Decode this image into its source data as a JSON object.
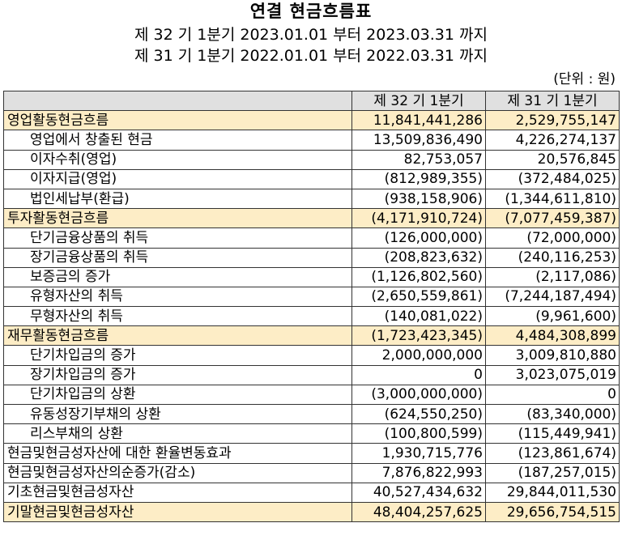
{
  "title": "연결 현금흐름표",
  "period_current": "제 32 기 1분기 2023.01.01 부터 2023.03.31 까지",
  "period_prior": "제 31 기 1분기 2022.01.01 부터 2022.03.31 까지",
  "unit": "(단위 : 원)",
  "columns": [
    "",
    "제 32 기 1분기",
    "제 31 기 1분기"
  ],
  "rows": [
    {
      "label": "영업활동현금흐름",
      "cur": "11,841,441,286",
      "prev": "2,529,755,147",
      "highlight": true,
      "indent": false
    },
    {
      "label": "영업에서 창출된 현금",
      "cur": "13,509,836,490",
      "prev": "4,226,274,137",
      "highlight": false,
      "indent": true
    },
    {
      "label": "이자수취(영업)",
      "cur": "82,753,057",
      "prev": "20,576,845",
      "highlight": false,
      "indent": true
    },
    {
      "label": "이자지급(영업)",
      "cur": "(812,989,355)",
      "prev": "(372,484,025)",
      "highlight": false,
      "indent": true
    },
    {
      "label": "법인세납부(환급)",
      "cur": "(938,158,906)",
      "prev": "(1,344,611,810)",
      "highlight": false,
      "indent": true
    },
    {
      "label": "투자활동현금흐름",
      "cur": "(4,171,910,724)",
      "prev": "(7,077,459,387)",
      "highlight": true,
      "indent": false
    },
    {
      "label": "단기금융상품의 취득",
      "cur": "(126,000,000)",
      "prev": "(72,000,000)",
      "highlight": false,
      "indent": true
    },
    {
      "label": "장기금융상품의 취득",
      "cur": "(208,823,632)",
      "prev": "(240,116,253)",
      "highlight": false,
      "indent": true
    },
    {
      "label": "보증금의 증가",
      "cur": "(1,126,802,560)",
      "prev": "(2,117,086)",
      "highlight": false,
      "indent": true
    },
    {
      "label": "유형자산의 취득",
      "cur": "(2,650,559,861)",
      "prev": "(7,244,187,494)",
      "highlight": false,
      "indent": true
    },
    {
      "label": "무형자산의 취득",
      "cur": "(140,081,022)",
      "prev": "(9,961,600)",
      "highlight": false,
      "indent": true
    },
    {
      "label": "재무활동현금흐름",
      "cur": "(1,723,423,345)",
      "prev": "4,484,308,899",
      "highlight": true,
      "indent": false
    },
    {
      "label": "단기차입금의 증가",
      "cur": "2,000,000,000",
      "prev": "3,009,810,880",
      "highlight": false,
      "indent": true
    },
    {
      "label": "장기차입금의 증가",
      "cur": "0",
      "prev": "3,023,075,019",
      "highlight": false,
      "indent": true
    },
    {
      "label": "단기차입금의 상환",
      "cur": "(3,000,000,000)",
      "prev": "0",
      "highlight": false,
      "indent": true
    },
    {
      "label": "유동성장기부채의 상환",
      "cur": "(624,550,250)",
      "prev": "(83,340,000)",
      "highlight": false,
      "indent": true
    },
    {
      "label": "리스부채의 상환",
      "cur": "(100,800,599)",
      "prev": "(115,449,941)",
      "highlight": false,
      "indent": true
    },
    {
      "label": "현금및현금성자산에 대한 환율변동효과",
      "cur": "1,930,715,776",
      "prev": "(123,861,674)",
      "highlight": false,
      "indent": false
    },
    {
      "label": "현금및현금성자산의순증가(감소)",
      "cur": "7,876,822,993",
      "prev": "(187,257,015)",
      "highlight": false,
      "indent": false
    },
    {
      "label": "기초현금및현금성자산",
      "cur": "40,527,434,632",
      "prev": "29,844,011,530",
      "highlight": false,
      "indent": false
    },
    {
      "label": "기말현금및현금성자산",
      "cur": "48,404,257,625",
      "prev": "29,656,754,515",
      "highlight": true,
      "indent": false
    }
  ],
  "colors": {
    "highlight": "#fdedc6",
    "header": "#e0e0e0"
  }
}
